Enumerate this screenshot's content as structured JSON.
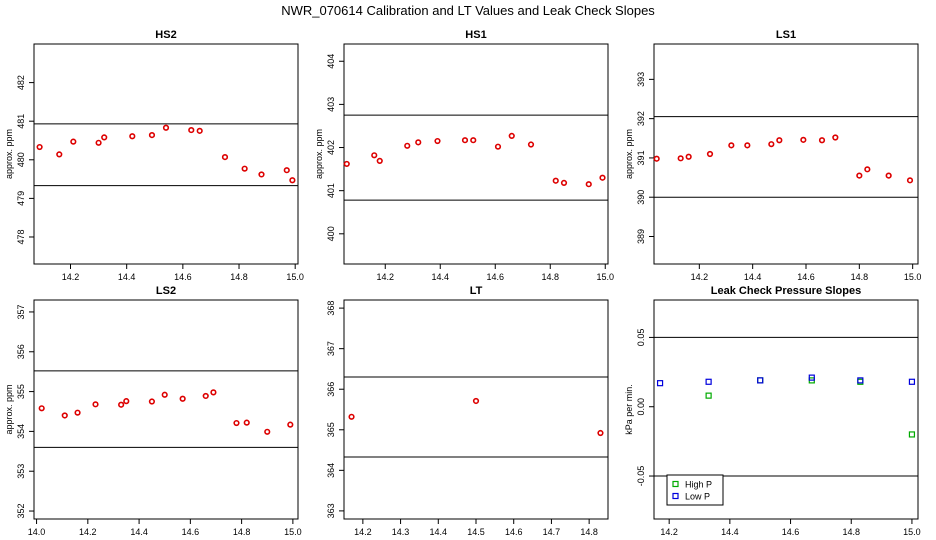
{
  "figure": {
    "title": "NWR_070614  Calibration and LT Values and Leak Check Slopes"
  },
  "chart_data": [
    {
      "type": "scatter",
      "title": "HS2",
      "ylabel": "approx. ppm",
      "xlim": [
        14.07,
        15.01
      ],
      "ylim": [
        477.3,
        483.0
      ],
      "xticks": [
        14.2,
        14.4,
        14.6,
        14.8,
        15.0
      ],
      "xticklabels": [
        "14.2",
        "14.4",
        "14.6",
        "14.8",
        "15.0"
      ],
      "yticks": [
        478,
        479,
        480,
        481,
        482
      ],
      "yticklabels": [
        "478",
        "479",
        "480",
        "481",
        "482"
      ],
      "hlines": [
        480.93,
        479.33
      ],
      "series": [
        {
          "color": "#dd0000",
          "marker": "circle",
          "x": [
            14.09,
            14.16,
            14.21,
            14.3,
            14.32,
            14.42,
            14.49,
            14.54,
            14.63,
            14.66,
            14.75,
            14.82,
            14.88,
            14.97,
            14.99
          ],
          "y": [
            480.33,
            480.14,
            480.47,
            480.44,
            480.58,
            480.61,
            480.64,
            480.83,
            480.77,
            480.75,
            480.07,
            479.77,
            479.62,
            479.73,
            479.47
          ]
        }
      ]
    },
    {
      "type": "scatter",
      "title": "HS1",
      "ylabel": "approx. ppm",
      "xlim": [
        14.05,
        15.01
      ],
      "ylim": [
        399.3,
        404.4
      ],
      "xticks": [
        14.2,
        14.4,
        14.6,
        14.8,
        15.0
      ],
      "xticklabels": [
        "14.2",
        "14.4",
        "14.6",
        "14.8",
        "15.0"
      ],
      "yticks": [
        400,
        401,
        402,
        403,
        404
      ],
      "yticklabels": [
        "400",
        "401",
        "402",
        "403",
        "404"
      ],
      "hlines": [
        402.75,
        400.78
      ],
      "series": [
        {
          "color": "#dd0000",
          "marker": "circle",
          "x": [
            14.06,
            14.16,
            14.18,
            14.28,
            14.32,
            14.39,
            14.49,
            14.52,
            14.61,
            14.66,
            14.73,
            14.82,
            14.85,
            14.94,
            14.99
          ],
          "y": [
            401.62,
            401.82,
            401.69,
            402.04,
            402.12,
            402.15,
            402.17,
            402.17,
            402.02,
            402.27,
            402.07,
            401.23,
            401.18,
            401.15,
            401.3
          ]
        }
      ]
    },
    {
      "type": "scatter",
      "title": "LS1",
      "ylabel": "approx. ppm",
      "xlim": [
        14.03,
        15.02
      ],
      "ylim": [
        388.3,
        393.9
      ],
      "xticks": [
        14.2,
        14.4,
        14.6,
        14.8,
        15.0
      ],
      "xticklabels": [
        "14.2",
        "14.4",
        "14.6",
        "14.8",
        "15.0"
      ],
      "yticks": [
        389,
        390,
        391,
        392,
        393
      ],
      "yticklabels": [
        "389",
        "390",
        "391",
        "392",
        "393"
      ],
      "hlines": [
        392.05,
        390.0
      ],
      "series": [
        {
          "color": "#dd0000",
          "marker": "circle",
          "x": [
            14.04,
            14.13,
            14.16,
            14.24,
            14.32,
            14.38,
            14.47,
            14.5,
            14.59,
            14.66,
            14.71,
            14.8,
            14.83,
            14.91,
            14.99
          ],
          "y": [
            390.98,
            390.99,
            391.03,
            391.1,
            391.32,
            391.32,
            391.35,
            391.45,
            391.46,
            391.45,
            391.52,
            390.55,
            390.71,
            390.55,
            390.43
          ]
        }
      ]
    },
    {
      "type": "scatter",
      "title": "LS2",
      "ylabel": "approx. ppm",
      "xlim": [
        13.99,
        15.02
      ],
      "ylim": [
        351.8,
        357.3
      ],
      "xticks": [
        14.0,
        14.2,
        14.4,
        14.6,
        14.8,
        15.0
      ],
      "xticklabels": [
        "14.0",
        "14.2",
        "14.4",
        "14.6",
        "14.8",
        "15.0"
      ],
      "yticks": [
        352,
        353,
        354,
        355,
        356,
        357
      ],
      "yticklabels": [
        "352",
        "353",
        "354",
        "355",
        "356",
        "357"
      ],
      "hlines": [
        355.52,
        353.6
      ],
      "series": [
        {
          "color": "#dd0000",
          "marker": "circle",
          "x": [
            14.02,
            14.11,
            14.16,
            14.23,
            14.33,
            14.35,
            14.45,
            14.5,
            14.57,
            14.66,
            14.69,
            14.78,
            14.82,
            14.9,
            14.99
          ],
          "y": [
            354.58,
            354.4,
            354.47,
            354.68,
            354.67,
            354.76,
            354.75,
            354.92,
            354.82,
            354.89,
            354.98,
            354.21,
            354.22,
            353.99,
            354.17
          ]
        }
      ]
    },
    {
      "type": "scatter",
      "title": "LT",
      "ylabel": "",
      "xlim": [
        14.15,
        14.85
      ],
      "ylim": [
        362.8,
        368.2
      ],
      "xticks": [
        14.2,
        14.3,
        14.4,
        14.5,
        14.6,
        14.7,
        14.8
      ],
      "xticklabels": [
        "14.2",
        "14.3",
        "14.4",
        "14.5",
        "14.6",
        "14.7",
        "14.8"
      ],
      "yticks": [
        363,
        364,
        365,
        366,
        367,
        368
      ],
      "yticklabels": [
        "363",
        "364",
        "365",
        "366",
        "367",
        "368"
      ],
      "hlines": [
        366.3,
        364.33
      ],
      "series": [
        {
          "color": "#dd0000",
          "marker": "circle",
          "x": [
            14.17,
            14.5,
            14.83
          ],
          "y": [
            365.32,
            365.71,
            364.92
          ]
        }
      ]
    },
    {
      "type": "scatter",
      "title": "Leak Check Pressure Slopes",
      "ylabel": "kPa per min.",
      "xlim": [
        14.15,
        15.02
      ],
      "ylim": [
        -0.081,
        0.077
      ],
      "xticks": [
        14.2,
        14.4,
        14.6,
        14.8,
        15.0
      ],
      "xticklabels": [
        "14.2",
        "14.4",
        "14.6",
        "14.8",
        "15.0"
      ],
      "yticks": [
        -0.05,
        0.0,
        0.05
      ],
      "yticklabels": [
        "-0.05",
        "0.00",
        "0.05"
      ],
      "hlines": [
        0.05,
        -0.05
      ],
      "legend": {
        "position": "bottom-left",
        "entries": [
          "High P",
          "Low P"
        ]
      },
      "series": [
        {
          "name": "High P",
          "color": "#00aa00",
          "marker": "square",
          "x": [
            14.33,
            14.5,
            14.67,
            14.83,
            15.0
          ],
          "y": [
            0.008,
            0.019,
            0.019,
            0.018,
            -0.02
          ]
        },
        {
          "name": "Low P",
          "color": "#0000dd",
          "marker": "square",
          "x": [
            14.17,
            14.33,
            14.5,
            14.67,
            14.83,
            15.0
          ],
          "y": [
            0.017,
            0.018,
            0.019,
            0.021,
            0.019,
            0.018
          ]
        }
      ]
    }
  ]
}
